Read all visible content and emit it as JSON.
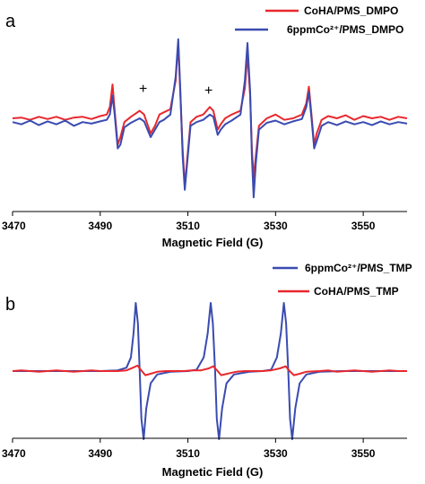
{
  "colors": {
    "red": "#e8282e",
    "blue": "#3a4bb0",
    "axis": "#000000"
  },
  "chart_data": [
    {
      "panel": "a",
      "type": "line",
      "xlabel": "Magnetic Field (G)",
      "xlim": [
        3470,
        3560
      ],
      "xticks": [
        "3470",
        "3490",
        "3510",
        "3530",
        "3550"
      ],
      "ylabel": "",
      "yaxis_visible": false,
      "legend_position": "top-right",
      "annotations": [
        "+",
        "+"
      ],
      "series": [
        {
          "name": "CoHA/PMS_DMPO",
          "color": "red",
          "points": [
            [
              3470,
              0.0
            ],
            [
              3472,
              0.01
            ],
            [
              3474,
              -0.02
            ],
            [
              3476,
              0.02
            ],
            [
              3478,
              -0.01
            ],
            [
              3480,
              0.02
            ],
            [
              3482,
              -0.02
            ],
            [
              3484,
              0.01
            ],
            [
              3486,
              0.02
            ],
            [
              3488,
              -0.01
            ],
            [
              3490,
              0.03
            ],
            [
              3491.5,
              0.05
            ],
            [
              3492.2,
              0.15
            ],
            [
              3492.8,
              0.45
            ],
            [
              3493.3,
              0.1
            ],
            [
              3494.0,
              -0.35
            ],
            [
              3494.6,
              -0.25
            ],
            [
              3495.5,
              -0.05
            ],
            [
              3497,
              0.02
            ],
            [
              3499,
              0.1
            ],
            [
              3500,
              0.05
            ],
            [
              3501.5,
              -0.2
            ],
            [
              3502.5,
              -0.1
            ],
            [
              3503.5,
              0.05
            ],
            [
              3504.5,
              0.08
            ],
            [
              3506,
              0.12
            ],
            [
              3507.2,
              0.5
            ],
            [
              3507.8,
              1.0
            ],
            [
              3508.3,
              0.3
            ],
            [
              3508.8,
              -0.4
            ],
            [
              3509.3,
              -0.9
            ],
            [
              3509.9,
              -0.5
            ],
            [
              3510.6,
              -0.05
            ],
            [
              3512,
              0.02
            ],
            [
              3513.5,
              0.05
            ],
            [
              3515,
              0.15
            ],
            [
              3515.8,
              0.1
            ],
            [
              3516.8,
              -0.15
            ],
            [
              3517.5,
              -0.08
            ],
            [
              3518.5,
              0.0
            ],
            [
              3520,
              0.05
            ],
            [
              3522,
              0.1
            ],
            [
              3523.0,
              0.4
            ],
            [
              3523.6,
              0.85
            ],
            [
              3524.2,
              0.3
            ],
            [
              3524.6,
              -0.4
            ],
            [
              3525.0,
              -0.8
            ],
            [
              3525.5,
              -0.5
            ],
            [
              3526.2,
              -0.1
            ],
            [
              3528,
              0.0
            ],
            [
              3530,
              0.05
            ],
            [
              3532,
              -0.02
            ],
            [
              3534,
              0.0
            ],
            [
              3536,
              0.05
            ],
            [
              3537.0,
              0.2
            ],
            [
              3537.6,
              0.42
            ],
            [
              3538.2,
              0.05
            ],
            [
              3538.8,
              -0.35
            ],
            [
              3539.4,
              -0.2
            ],
            [
              3540.5,
              -0.02
            ],
            [
              3542,
              0.03
            ],
            [
              3544,
              0.0
            ],
            [
              3546,
              0.04
            ],
            [
              3548,
              -0.02
            ],
            [
              3550,
              0.03
            ],
            [
              3552,
              0.0
            ],
            [
              3554,
              0.02
            ],
            [
              3556,
              -0.02
            ],
            [
              3558,
              0.02
            ],
            [
              3560,
              0.0
            ]
          ]
        },
        {
          "name": "6ppmCo²⁺/PMS_DMPO",
          "color": "blue",
          "points": [
            [
              3470,
              -0.05
            ],
            [
              3472,
              -0.08
            ],
            [
              3474,
              -0.03
            ],
            [
              3476,
              -0.09
            ],
            [
              3478,
              -0.04
            ],
            [
              3480,
              -0.08
            ],
            [
              3482,
              -0.03
            ],
            [
              3484,
              -0.1
            ],
            [
              3486,
              -0.05
            ],
            [
              3488,
              -0.07
            ],
            [
              3490,
              -0.04
            ],
            [
              3491.5,
              -0.02
            ],
            [
              3492.2,
              0.05
            ],
            [
              3492.8,
              0.3
            ],
            [
              3493.3,
              0.05
            ],
            [
              3494.0,
              -0.4
            ],
            [
              3494.6,
              -0.35
            ],
            [
              3495.5,
              -0.12
            ],
            [
              3497,
              -0.06
            ],
            [
              3499,
              0.0
            ],
            [
              3500,
              -0.04
            ],
            [
              3501.5,
              -0.25
            ],
            [
              3502.5,
              -0.15
            ],
            [
              3503.5,
              -0.05
            ],
            [
              3504.5,
              -0.02
            ],
            [
              3506,
              0.05
            ],
            [
              3507.2,
              0.55
            ],
            [
              3507.8,
              1.05
            ],
            [
              3508.3,
              0.35
            ],
            [
              3508.8,
              -0.5
            ],
            [
              3509.3,
              -0.95
            ],
            [
              3509.9,
              -0.55
            ],
            [
              3510.6,
              -0.1
            ],
            [
              3512,
              -0.05
            ],
            [
              3513.5,
              -0.02
            ],
            [
              3515,
              0.05
            ],
            [
              3515.8,
              0.02
            ],
            [
              3516.8,
              -0.22
            ],
            [
              3517.5,
              -0.15
            ],
            [
              3518.5,
              -0.08
            ],
            [
              3520,
              -0.03
            ],
            [
              3522,
              0.05
            ],
            [
              3523.0,
              0.5
            ],
            [
              3523.6,
              1.0
            ],
            [
              3524.2,
              0.35
            ],
            [
              3524.6,
              -0.5
            ],
            [
              3525.0,
              -1.05
            ],
            [
              3525.5,
              -0.6
            ],
            [
              3526.2,
              -0.15
            ],
            [
              3528,
              -0.06
            ],
            [
              3530,
              -0.03
            ],
            [
              3532,
              -0.08
            ],
            [
              3534,
              -0.04
            ],
            [
              3536,
              -0.01
            ],
            [
              3537.0,
              0.15
            ],
            [
              3537.6,
              0.35
            ],
            [
              3538.2,
              0.0
            ],
            [
              3538.8,
              -0.4
            ],
            [
              3539.4,
              -0.3
            ],
            [
              3540.5,
              -0.1
            ],
            [
              3542,
              -0.05
            ],
            [
              3544,
              -0.09
            ],
            [
              3546,
              -0.04
            ],
            [
              3548,
              -0.08
            ],
            [
              3550,
              -0.05
            ],
            [
              3552,
              -0.09
            ],
            [
              3554,
              -0.04
            ],
            [
              3556,
              -0.08
            ],
            [
              3558,
              -0.05
            ],
            [
              3560,
              -0.07
            ]
          ]
        }
      ]
    },
    {
      "panel": "b",
      "type": "line",
      "xlabel": "Magnetic Field (G)",
      "xlim": [
        3470,
        3560
      ],
      "xticks": [
        "3470",
        "3490",
        "3510",
        "3530",
        "3550"
      ],
      "ylabel": "",
      "yaxis_visible": false,
      "legend_position": "top-right",
      "series": [
        {
          "name": "6ppmCo²⁺/PMS_TMP",
          "color": "blue",
          "points": [
            [
              3470,
              0.0
            ],
            [
              3490,
              0.0
            ],
            [
              3494,
              0.01
            ],
            [
              3496,
              0.05
            ],
            [
              3497,
              0.2
            ],
            [
              3497.6,
              0.55
            ],
            [
              3498.1,
              1.0
            ],
            [
              3498.6,
              0.7
            ],
            [
              3499.0,
              0.0
            ],
            [
              3499.4,
              -0.7
            ],
            [
              3499.9,
              -1.0
            ],
            [
              3500.5,
              -0.55
            ],
            [
              3501.5,
              -0.18
            ],
            [
              3503,
              -0.05
            ],
            [
              3506,
              -0.01
            ],
            [
              3510,
              0.0
            ],
            [
              3512,
              0.02
            ],
            [
              3513.6,
              0.2
            ],
            [
              3514.5,
              0.55
            ],
            [
              3515.2,
              1.0
            ],
            [
              3515.7,
              0.7
            ],
            [
              3516.2,
              0.0
            ],
            [
              3516.6,
              -0.7
            ],
            [
              3517.1,
              -1.0
            ],
            [
              3517.8,
              -0.55
            ],
            [
              3518.8,
              -0.18
            ],
            [
              3520.5,
              -0.05
            ],
            [
              3524,
              -0.01
            ],
            [
              3527,
              0.0
            ],
            [
              3529,
              0.02
            ],
            [
              3530.3,
              0.2
            ],
            [
              3531.2,
              0.55
            ],
            [
              3531.9,
              1.0
            ],
            [
              3532.4,
              0.7
            ],
            [
              3532.9,
              0.0
            ],
            [
              3533.3,
              -0.7
            ],
            [
              3533.8,
              -1.0
            ],
            [
              3534.5,
              -0.55
            ],
            [
              3535.5,
              -0.18
            ],
            [
              3537,
              -0.05
            ],
            [
              3540,
              -0.01
            ],
            [
              3545,
              0.0
            ],
            [
              3560,
              0.0
            ]
          ]
        },
        {
          "name": "CoHA/PMS_TMP",
          "color": "red",
          "points": [
            [
              3470,
              0.0
            ],
            [
              3472,
              0.01
            ],
            [
              3474,
              0.0
            ],
            [
              3476,
              -0.01
            ],
            [
              3478,
              0.0
            ],
            [
              3480,
              0.01
            ],
            [
              3482,
              0.0
            ],
            [
              3484,
              -0.01
            ],
            [
              3486,
              0.0
            ],
            [
              3488,
              0.01
            ],
            [
              3490,
              0.0
            ],
            [
              3492,
              0.0
            ],
            [
              3494,
              0.0
            ],
            [
              3496,
              0.01
            ],
            [
              3497.5,
              0.05
            ],
            [
              3498.5,
              0.08
            ],
            [
              3499.5,
              0.0
            ],
            [
              3500.3,
              -0.06
            ],
            [
              3501.5,
              -0.04
            ],
            [
              3503,
              -0.01
            ],
            [
              3505,
              0.0
            ],
            [
              3507,
              0.0
            ],
            [
              3509,
              0.0
            ],
            [
              3511,
              0.01
            ],
            [
              3513,
              0.01
            ],
            [
              3514.8,
              0.04
            ],
            [
              3515.8,
              0.07
            ],
            [
              3516.8,
              0.0
            ],
            [
              3517.6,
              -0.06
            ],
            [
              3519,
              -0.04
            ],
            [
              3521,
              -0.01
            ],
            [
              3523,
              0.0
            ],
            [
              3525,
              0.0
            ],
            [
              3527,
              0.0
            ],
            [
              3529,
              0.01
            ],
            [
              3531,
              0.04
            ],
            [
              3532.3,
              0.07
            ],
            [
              3533.2,
              0.0
            ],
            [
              3534.2,
              -0.06
            ],
            [
              3535.5,
              -0.04
            ],
            [
              3537,
              -0.01
            ],
            [
              3540,
              0.0
            ],
            [
              3542,
              0.01
            ],
            [
              3544,
              -0.01
            ],
            [
              3546,
              0.0
            ],
            [
              3548,
              0.01
            ],
            [
              3550,
              0.0
            ],
            [
              3552,
              -0.01
            ],
            [
              3554,
              0.0
            ],
            [
              3556,
              0.01
            ],
            [
              3558,
              0.0
            ],
            [
              3560,
              0.0
            ]
          ]
        }
      ]
    }
  ]
}
